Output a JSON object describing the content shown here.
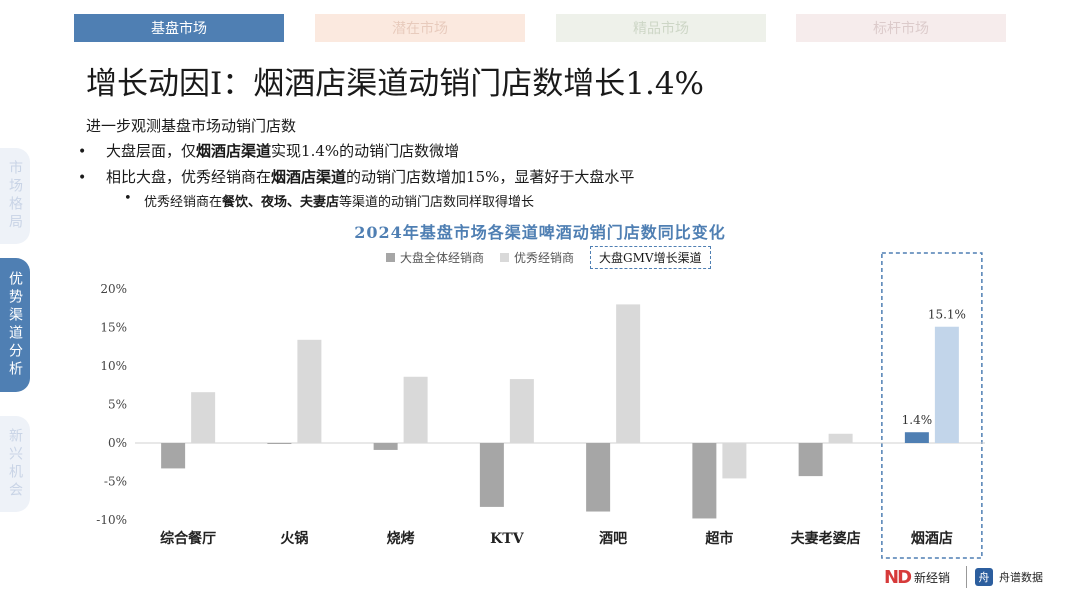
{
  "tabs": [
    {
      "label": "基盘市场"
    },
    {
      "label": "潜在市场"
    },
    {
      "label": "精品市场"
    },
    {
      "label": "标杆市场"
    }
  ],
  "side_tabs": [
    {
      "label": "市场格局"
    },
    {
      "label": "优势渠道分析"
    },
    {
      "label": "新兴机会"
    }
  ],
  "page_title": "增长动因I：烟酒店渠道动销门店数增长1.4%",
  "intro": "进一步观测基盘市场动销门店数",
  "bullets": [
    {
      "pre": "大盘层面，仅",
      "bold": "烟酒店渠道",
      "post": "实现1.4%的动销门店数微增"
    },
    {
      "pre": "相比大盘，优秀经销商在",
      "bold": "烟酒店渠道",
      "post": "的动销门店数增加15%，显著好于大盘水平"
    }
  ],
  "sub_bullet": {
    "pre": "优秀经销商在",
    "bold": "餐饮、夜场、夫妻店",
    "post": "等渠道的动销门店数同样取得增长"
  },
  "bullet_mark": "•",
  "colors": {
    "accent": "#4f7fb3",
    "all_dealers": "#a6a6a6",
    "top_dealers": "#d9d9d9",
    "highlight_all": "#4f7fb3",
    "highlight_top": "#c2d5ea"
  },
  "chart_data": {
    "type": "bar",
    "title": "2024年基盘市场各渠道啤酒动销门店数同比变化",
    "categories": [
      "综合餐厅",
      "火锅",
      "烧烤",
      "KTV",
      "酒吧",
      "超市",
      "夫妻老婆店",
      "烟酒店"
    ],
    "series": [
      {
        "name": "大盘全体经销商",
        "values": [
          -3.3,
          -0.1,
          -0.9,
          -8.3,
          -8.9,
          -9.8,
          -4.3,
          1.4
        ]
      },
      {
        "name": "优秀经销商",
        "values": [
          6.6,
          13.4,
          8.6,
          8.3,
          18.0,
          -4.6,
          1.2,
          15.1
        ]
      }
    ],
    "highlight_category": "烟酒店",
    "highlight_legend": "大盘GMV增长渠道",
    "data_labels": [
      "1.4%",
      "15.1%"
    ],
    "yticks": [
      "20%",
      "15%",
      "10%",
      "5%",
      "0%",
      "-5%",
      "-10%"
    ],
    "ylim": [
      -10,
      20
    ],
    "grid": false,
    "legend": "top-center"
  },
  "logos": {
    "left_mark": "ND",
    "left_text": "新经销",
    "right_mark": "舟",
    "right_text": "舟谱数据"
  }
}
